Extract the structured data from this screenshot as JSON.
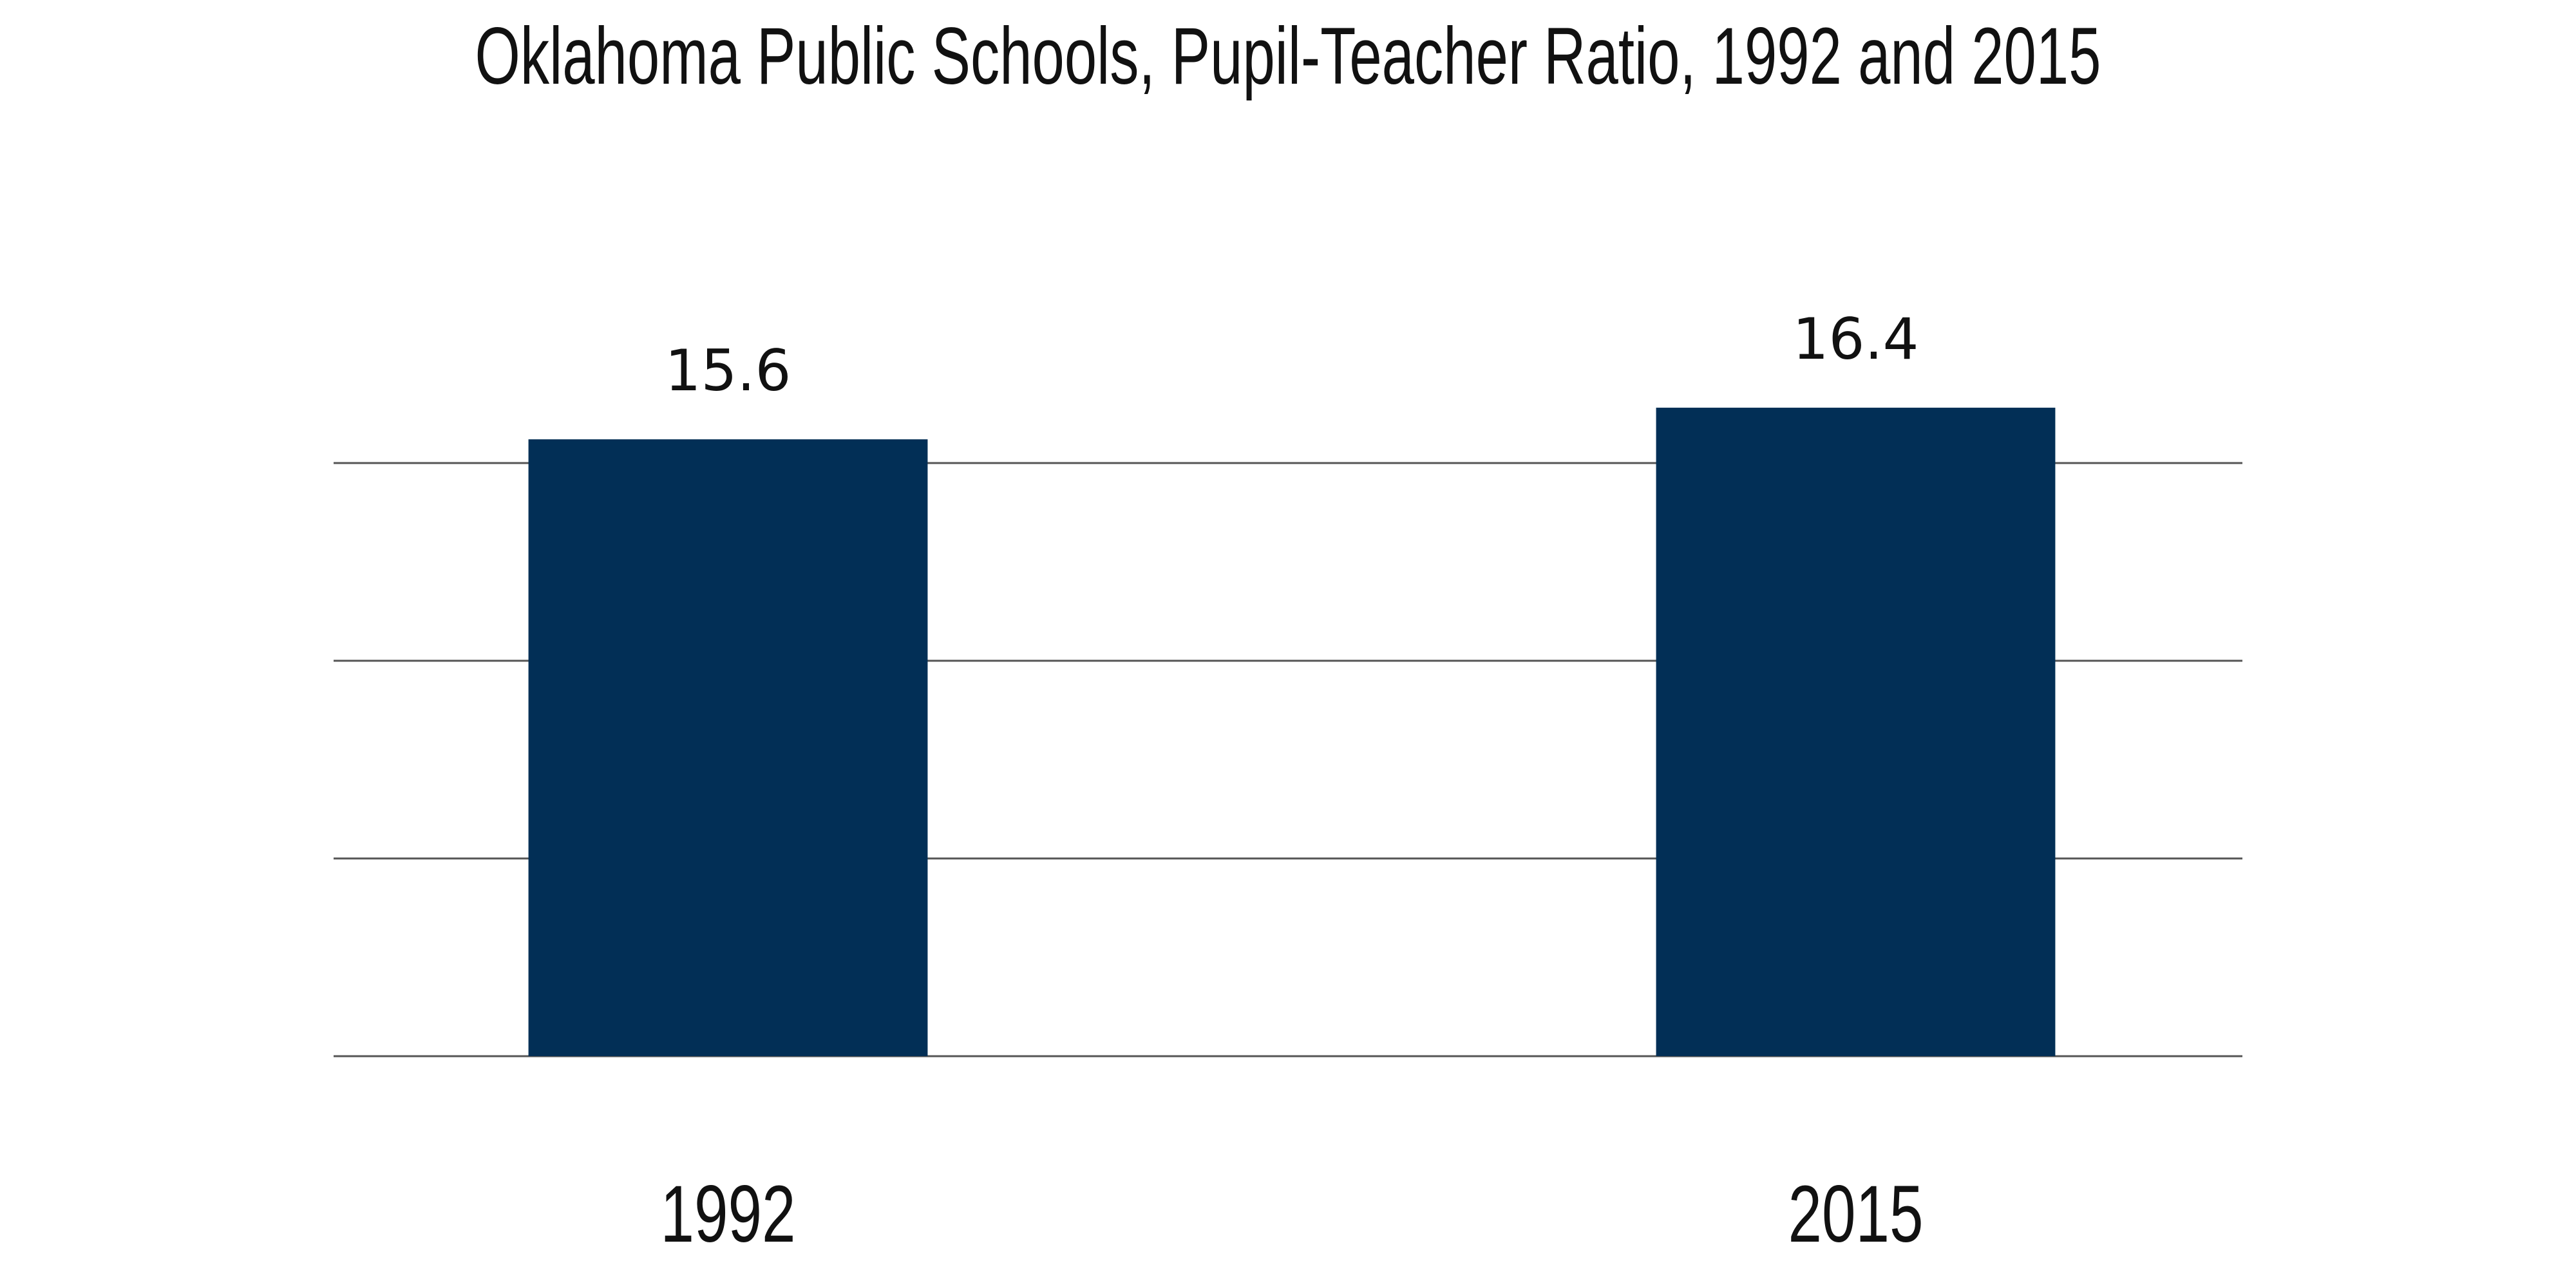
{
  "chart_data": {
    "type": "bar",
    "title": "Oklahoma Public Schools, Pupil-Teacher Ratio, 1992 and 2015",
    "categories": [
      "1992",
      "2015"
    ],
    "values": [
      15.6,
      16.4
    ],
    "color": "#022f56",
    "ylim": [
      0,
      20
    ],
    "yticks": [
      0,
      5,
      10,
      15
    ],
    "grid": true
  }
}
